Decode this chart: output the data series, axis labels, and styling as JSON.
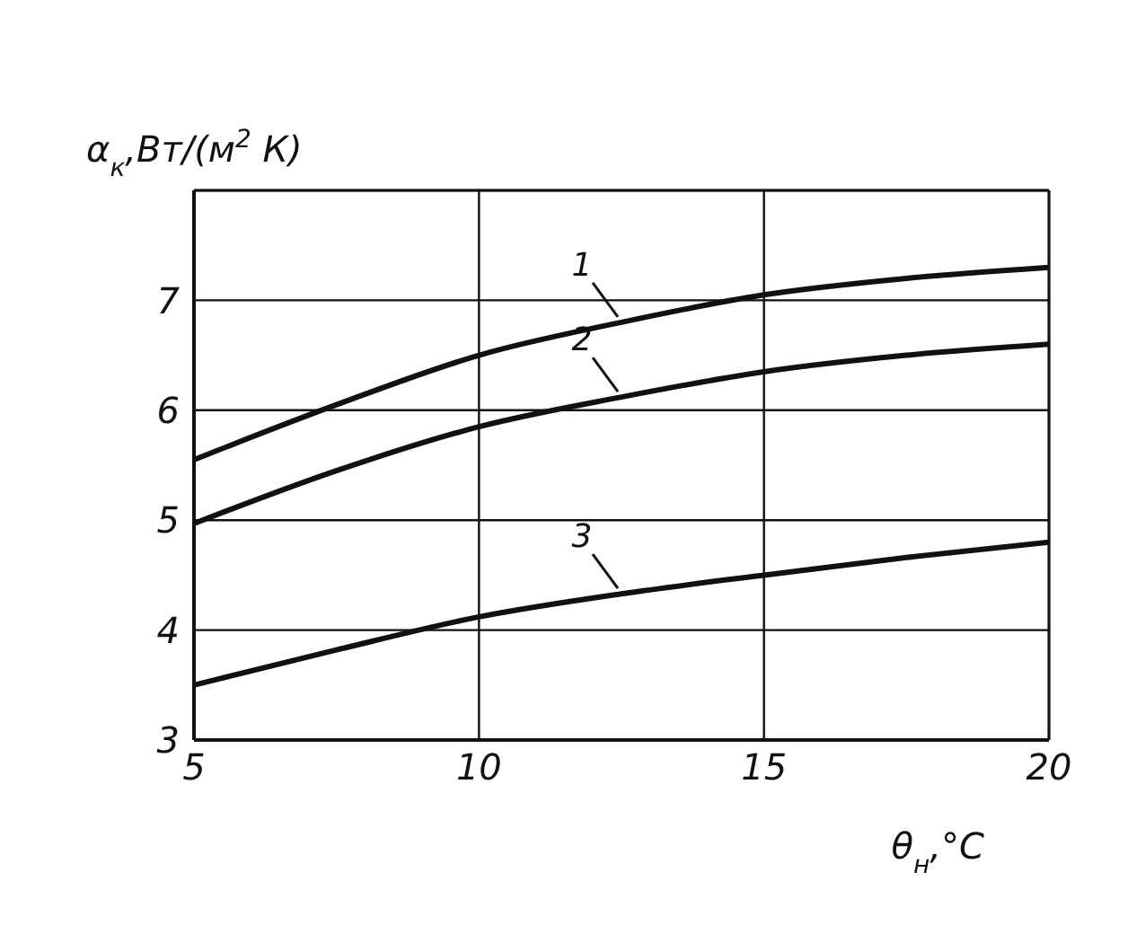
{
  "chart_data": {
    "type": "line",
    "xlabel": "θ$_{н}$,°C",
    "ylabel": "α$_{к}$,Вт/(м$^{2}$ К)",
    "x": [
      5,
      7.5,
      10,
      12.5,
      15,
      17.5,
      20
    ],
    "series": [
      {
        "name": "1",
        "color": "#111111",
        "values": [
          5.55,
          6.05,
          6.5,
          6.8,
          7.05,
          7.2,
          7.3
        ]
      },
      {
        "name": "2",
        "color": "#111111",
        "values": [
          4.97,
          5.45,
          5.85,
          6.12,
          6.35,
          6.5,
          6.6
        ]
      },
      {
        "name": "3",
        "color": "#111111",
        "values": [
          3.5,
          3.82,
          4.12,
          4.33,
          4.5,
          4.66,
          4.8
        ]
      }
    ],
    "xlim": [
      5,
      20
    ],
    "xticks": [
      5,
      10,
      15,
      20
    ],
    "ylim": [
      3,
      8
    ],
    "yticks": [
      3,
      4,
      5,
      6,
      7
    ],
    "grid": true,
    "marker": "none",
    "line_style": "solid"
  }
}
